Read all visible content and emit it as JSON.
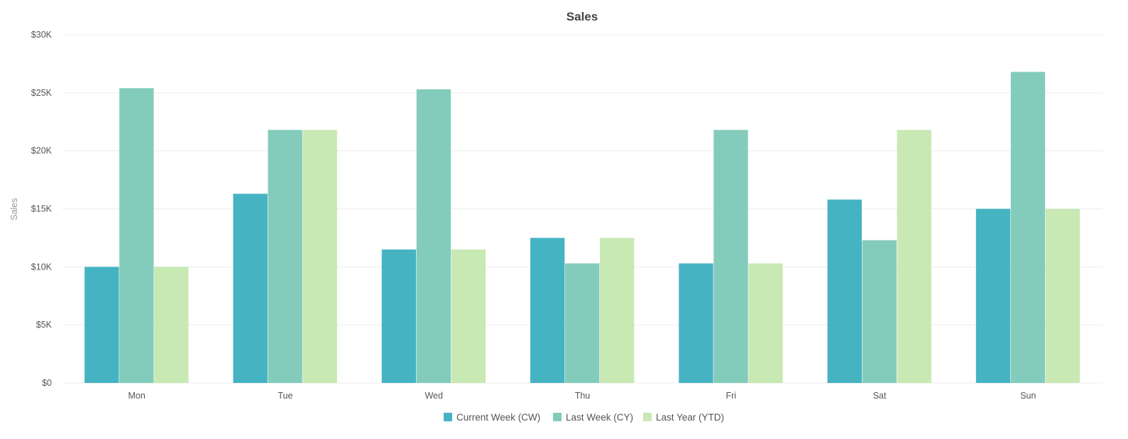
{
  "chart_data": {
    "type": "bar",
    "title": "Sales",
    "xlabel": "",
    "ylabel": "Sales",
    "categories": [
      "Mon",
      "Tue",
      "Wed",
      "Thu",
      "Fri",
      "Sat",
      "Sun"
    ],
    "series": [
      {
        "name": "Current Week (CW)",
        "color": "#46b3c3",
        "values": [
          10000,
          16300,
          11500,
          12500,
          10300,
          15800,
          15000
        ]
      },
      {
        "name": "Last Week (CY)",
        "color": "#83ccbb",
        "values": [
          25400,
          21800,
          25300,
          10300,
          21800,
          12300,
          26800
        ]
      },
      {
        "name": "Last Year (YTD)",
        "color": "#c8e9b4",
        "values": [
          10000,
          21800,
          11500,
          12500,
          10300,
          21800,
          15000
        ]
      }
    ],
    "ylim": [
      0,
      30000
    ],
    "yticks": [
      0,
      5000,
      10000,
      15000,
      20000,
      25000,
      30000
    ],
    "ytick_labels": [
      "$0",
      "$5K",
      "$10K",
      "$15K",
      "$20K",
      "$25K",
      "$30K"
    ],
    "grid": true,
    "legend": "bottom-center"
  }
}
